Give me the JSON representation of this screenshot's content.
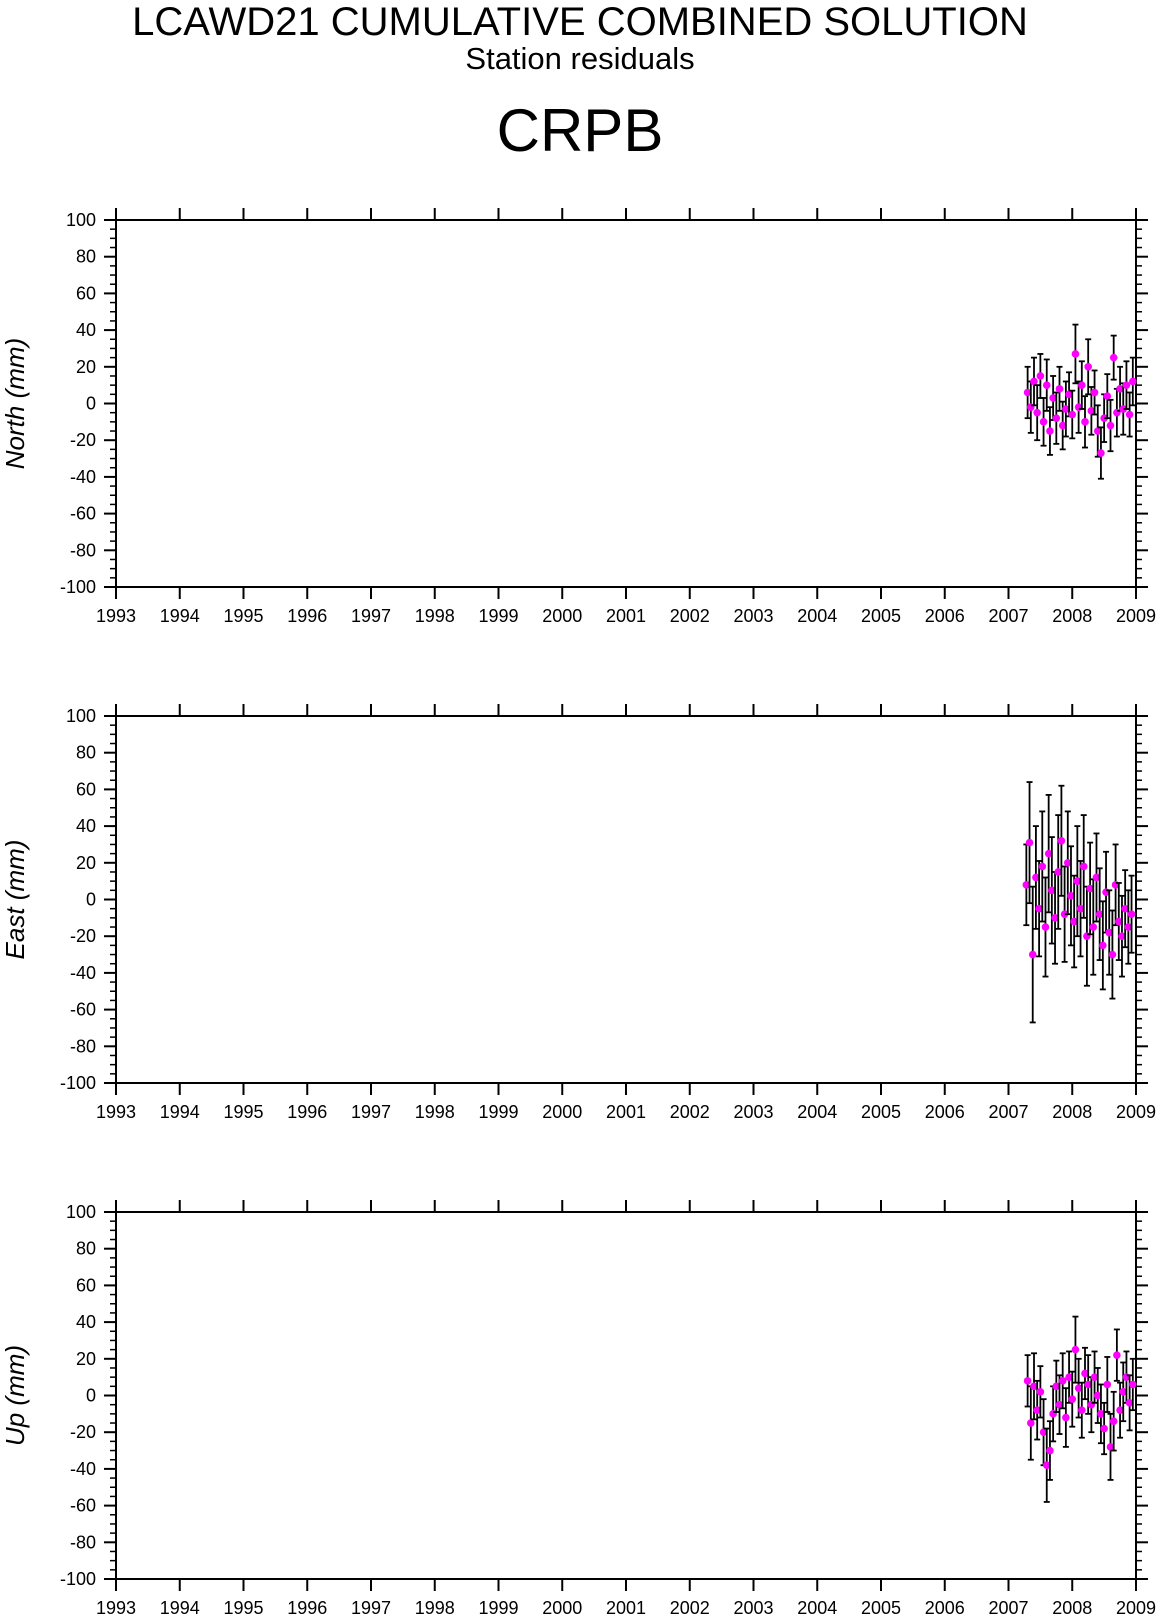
{
  "header": {
    "title": "LCAWD21 CUMULATIVE COMBINED SOLUTION",
    "subtitle": "Station residuals",
    "station": "CRPB"
  },
  "colors": {
    "point": "#ff00ff",
    "errorbar": "#000000",
    "axis": "#000000"
  },
  "chart_data": [
    {
      "type": "scatter",
      "ylabel": "North (mm)",
      "ylim": [
        -100,
        100
      ],
      "xlim": [
        1993,
        2009
      ],
      "xticks": [
        "1993",
        "1994",
        "1995",
        "1996",
        "1997",
        "1998",
        "1999",
        "2000",
        "2001",
        "2002",
        "2003",
        "2004",
        "2005",
        "2006",
        "2007",
        "2008",
        "2009"
      ],
      "yticks": [
        "100",
        "80",
        "60",
        "40",
        "20",
        "0",
        "-20",
        "-40",
        "-60",
        "-80",
        "-100"
      ],
      "series": [
        {
          "x": [
            2007.3,
            2007.35,
            2007.4,
            2007.45,
            2007.5,
            2007.55,
            2007.6,
            2007.65,
            2007.7,
            2007.75,
            2007.8,
            2007.85,
            2007.9,
            2007.95,
            2008.0,
            2008.05,
            2008.1,
            2008.15,
            2008.2,
            2008.25,
            2008.3,
            2008.35,
            2008.4,
            2008.45,
            2008.5,
            2008.55,
            2008.6,
            2008.65,
            2008.7,
            2008.75,
            2008.8,
            2008.85,
            2008.9,
            2008.95
          ],
          "y": [
            6,
            -2,
            12,
            -5,
            15,
            -10,
            10,
            -15,
            3,
            -8,
            8,
            -12,
            -3,
            5,
            -6,
            27,
            -2,
            10,
            -10,
            20,
            -4,
            6,
            -15,
            -27,
            -8,
            4,
            -12,
            25,
            -5,
            8,
            -3,
            10,
            -6,
            12
          ],
          "err": [
            14,
            14,
            13,
            15,
            12,
            13,
            14,
            13,
            12,
            14,
            12,
            13,
            15,
            12,
            13,
            16,
            14,
            13,
            14,
            15,
            13,
            12,
            14,
            14,
            13,
            12,
            14,
            12,
            13,
            12,
            14,
            13,
            12,
            13
          ]
        }
      ]
    },
    {
      "type": "scatter",
      "ylabel": "East (mm)",
      "ylim": [
        -100,
        100
      ],
      "xlim": [
        1993,
        2009
      ],
      "xticks": [
        "1993",
        "1994",
        "1995",
        "1996",
        "1997",
        "1998",
        "1999",
        "2000",
        "2001",
        "2002",
        "2003",
        "2004",
        "2005",
        "2006",
        "2007",
        "2008",
        "2009"
      ],
      "yticks": [
        "100",
        "80",
        "60",
        "40",
        "20",
        "0",
        "-20",
        "-40",
        "-60",
        "-80",
        "-100"
      ],
      "series": [
        {
          "x": [
            2007.28,
            2007.33,
            2007.38,
            2007.43,
            2007.48,
            2007.53,
            2007.58,
            2007.63,
            2007.68,
            2007.73,
            2007.78,
            2007.83,
            2007.88,
            2007.93,
            2007.98,
            2008.03,
            2008.08,
            2008.13,
            2008.18,
            2008.23,
            2008.28,
            2008.33,
            2008.38,
            2008.43,
            2008.48,
            2008.53,
            2008.58,
            2008.63,
            2008.68,
            2008.73,
            2008.78,
            2008.83,
            2008.88,
            2008.93
          ],
          "y": [
            8,
            31,
            -30,
            12,
            -5,
            18,
            -15,
            25,
            5,
            -10,
            15,
            32,
            -8,
            20,
            2,
            -12,
            10,
            -5,
            18,
            -20,
            6,
            -15,
            12,
            -8,
            -25,
            4,
            -18,
            -30,
            8,
            -12,
            -20,
            -5,
            -15,
            -8
          ],
          "err": [
            22,
            33,
            37,
            28,
            26,
            30,
            27,
            32,
            29,
            25,
            31,
            30,
            26,
            28,
            27,
            25,
            30,
            26,
            28,
            27,
            25,
            26,
            24,
            25,
            24,
            22,
            23,
            24,
            22,
            21,
            22,
            21,
            20,
            21
          ]
        }
      ]
    },
    {
      "type": "scatter",
      "ylabel": "Up (mm)",
      "ylim": [
        -100,
        100
      ],
      "xlim": [
        1993,
        2009
      ],
      "xticks": [
        "1993",
        "1994",
        "1995",
        "1996",
        "1997",
        "1998",
        "1999",
        "2000",
        "2001",
        "2002",
        "2003",
        "2004",
        "2005",
        "2006",
        "2007",
        "2008",
        "2009"
      ],
      "yticks": [
        "100",
        "80",
        "60",
        "40",
        "20",
        "0",
        "-20",
        "-40",
        "-60",
        "-80",
        "-100"
      ],
      "series": [
        {
          "x": [
            2007.3,
            2007.35,
            2007.4,
            2007.45,
            2007.5,
            2007.55,
            2007.6,
            2007.65,
            2007.7,
            2007.75,
            2007.8,
            2007.85,
            2007.9,
            2007.95,
            2008.0,
            2008.05,
            2008.1,
            2008.15,
            2008.2,
            2008.25,
            2008.3,
            2008.35,
            2008.4,
            2008.45,
            2008.5,
            2008.55,
            2008.6,
            2008.65,
            2008.7,
            2008.75,
            2008.8,
            2008.85,
            2008.9,
            2008.95
          ],
          "y": [
            8,
            -15,
            5,
            -8,
            2,
            -20,
            -38,
            -30,
            -10,
            5,
            -5,
            8,
            -12,
            10,
            -2,
            25,
            4,
            -8,
            12,
            6,
            -5,
            10,
            0,
            -10,
            -18,
            6,
            -28,
            -14,
            22,
            -8,
            2,
            10,
            -4,
            6
          ],
          "err": [
            14,
            20,
            18,
            16,
            14,
            18,
            20,
            16,
            15,
            14,
            16,
            15,
            16,
            14,
            15,
            18,
            16,
            15,
            14,
            16,
            15,
            14,
            15,
            16,
            14,
            15,
            18,
            16,
            14,
            15,
            16,
            14,
            15,
            14
          ]
        }
      ]
    }
  ]
}
